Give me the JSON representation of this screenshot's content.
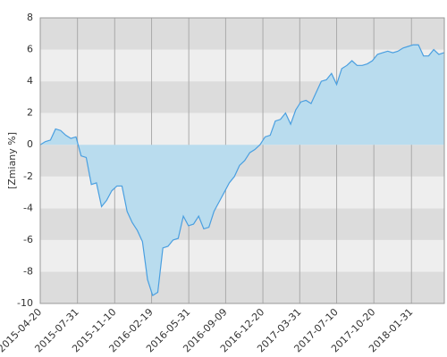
{
  "chart_data": {
    "type": "area",
    "y_label": "[Zmiany %]",
    "x": [
      "2015-04-20",
      "2015-05-04",
      "2015-05-18",
      "2015-06-01",
      "2015-06-15",
      "2015-06-29",
      "2015-07-13",
      "2015-07-27",
      "2015-08-10",
      "2015-08-24",
      "2015-09-07",
      "2015-09-21",
      "2015-10-05",
      "2015-10-19",
      "2015-11-02",
      "2015-11-16",
      "2015-11-30",
      "2015-12-14",
      "2015-12-28",
      "2016-01-11",
      "2016-01-25",
      "2016-02-08",
      "2016-02-22",
      "2016-03-07",
      "2016-03-21",
      "2016-04-04",
      "2016-04-18",
      "2016-05-02",
      "2016-05-16",
      "2016-05-30",
      "2016-06-13",
      "2016-06-27",
      "2016-07-11",
      "2016-07-25",
      "2016-08-08",
      "2016-08-22",
      "2016-09-05",
      "2016-09-19",
      "2016-10-03",
      "2016-10-17",
      "2016-10-31",
      "2016-11-14",
      "2016-11-28",
      "2016-12-12",
      "2016-12-26",
      "2017-01-09",
      "2017-01-23",
      "2017-02-06",
      "2017-02-20",
      "2017-03-06",
      "2017-03-20",
      "2017-04-03",
      "2017-04-17",
      "2017-05-01",
      "2017-05-15",
      "2017-05-29",
      "2017-06-12",
      "2017-06-26",
      "2017-07-10",
      "2017-07-24",
      "2017-08-07",
      "2017-08-21",
      "2017-09-04",
      "2017-09-18",
      "2017-10-02",
      "2017-10-16",
      "2017-10-30",
      "2017-11-13",
      "2017-11-27",
      "2017-12-11",
      "2017-12-25",
      "2018-01-08",
      "2018-01-22",
      "2018-02-05",
      "2018-02-19",
      "2018-03-05",
      "2018-03-19",
      "2018-04-02",
      "2018-04-16",
      "2018-04-30"
    ],
    "values": [
      0,
      0.2,
      0.3,
      1.0,
      0.9,
      0.6,
      0.4,
      0.5,
      -0.7,
      -0.8,
      -2.5,
      -2.4,
      -3.9,
      -3.5,
      -2.9,
      -2.6,
      -2.6,
      -4.2,
      -4.9,
      -5.4,
      -6.1,
      -8.5,
      -9.5,
      -9.3,
      -6.5,
      -6.4,
      -6.0,
      -5.9,
      -4.5,
      -5.1,
      -5.0,
      -4.5,
      -5.3,
      -5.2,
      -4.2,
      -3.6,
      -3.0,
      -2.4,
      -2.0,
      -1.3,
      -1.0,
      -0.5,
      -0.3,
      0.0,
      0.5,
      0.6,
      1.5,
      1.6,
      2.0,
      1.3,
      2.2,
      2.7,
      2.8,
      2.6,
      3.3,
      4.0,
      4.1,
      4.5,
      3.8,
      4.8,
      5.0,
      5.3,
      5.0,
      5.0,
      5.1,
      5.3,
      5.7,
      5.8,
      5.9,
      5.8,
      5.9,
      6.1,
      6.2,
      6.3,
      6.3,
      5.6,
      5.6,
      6.0,
      5.7,
      5.8
    ],
    "line_color": "#4a9fe0",
    "fill_color": "#b9dcee",
    "xlim": [
      "2015-04-20",
      "2018-05-01"
    ],
    "xticks": [
      "2015-04-20",
      "2015-07-31",
      "2015-11-10",
      "2016-02-19",
      "2016-05-31",
      "2016-09-09",
      "2016-12-20",
      "2017-03-31",
      "2017-07-10",
      "2017-10-20",
      "2018-01-31"
    ],
    "ylim": [
      -10,
      8
    ],
    "yticks": [
      -10,
      -8,
      -6,
      -4,
      -2,
      0,
      2,
      4,
      6,
      8
    ],
    "band_colors": [
      "#dcdcdc",
      "#eeeeee"
    ]
  }
}
